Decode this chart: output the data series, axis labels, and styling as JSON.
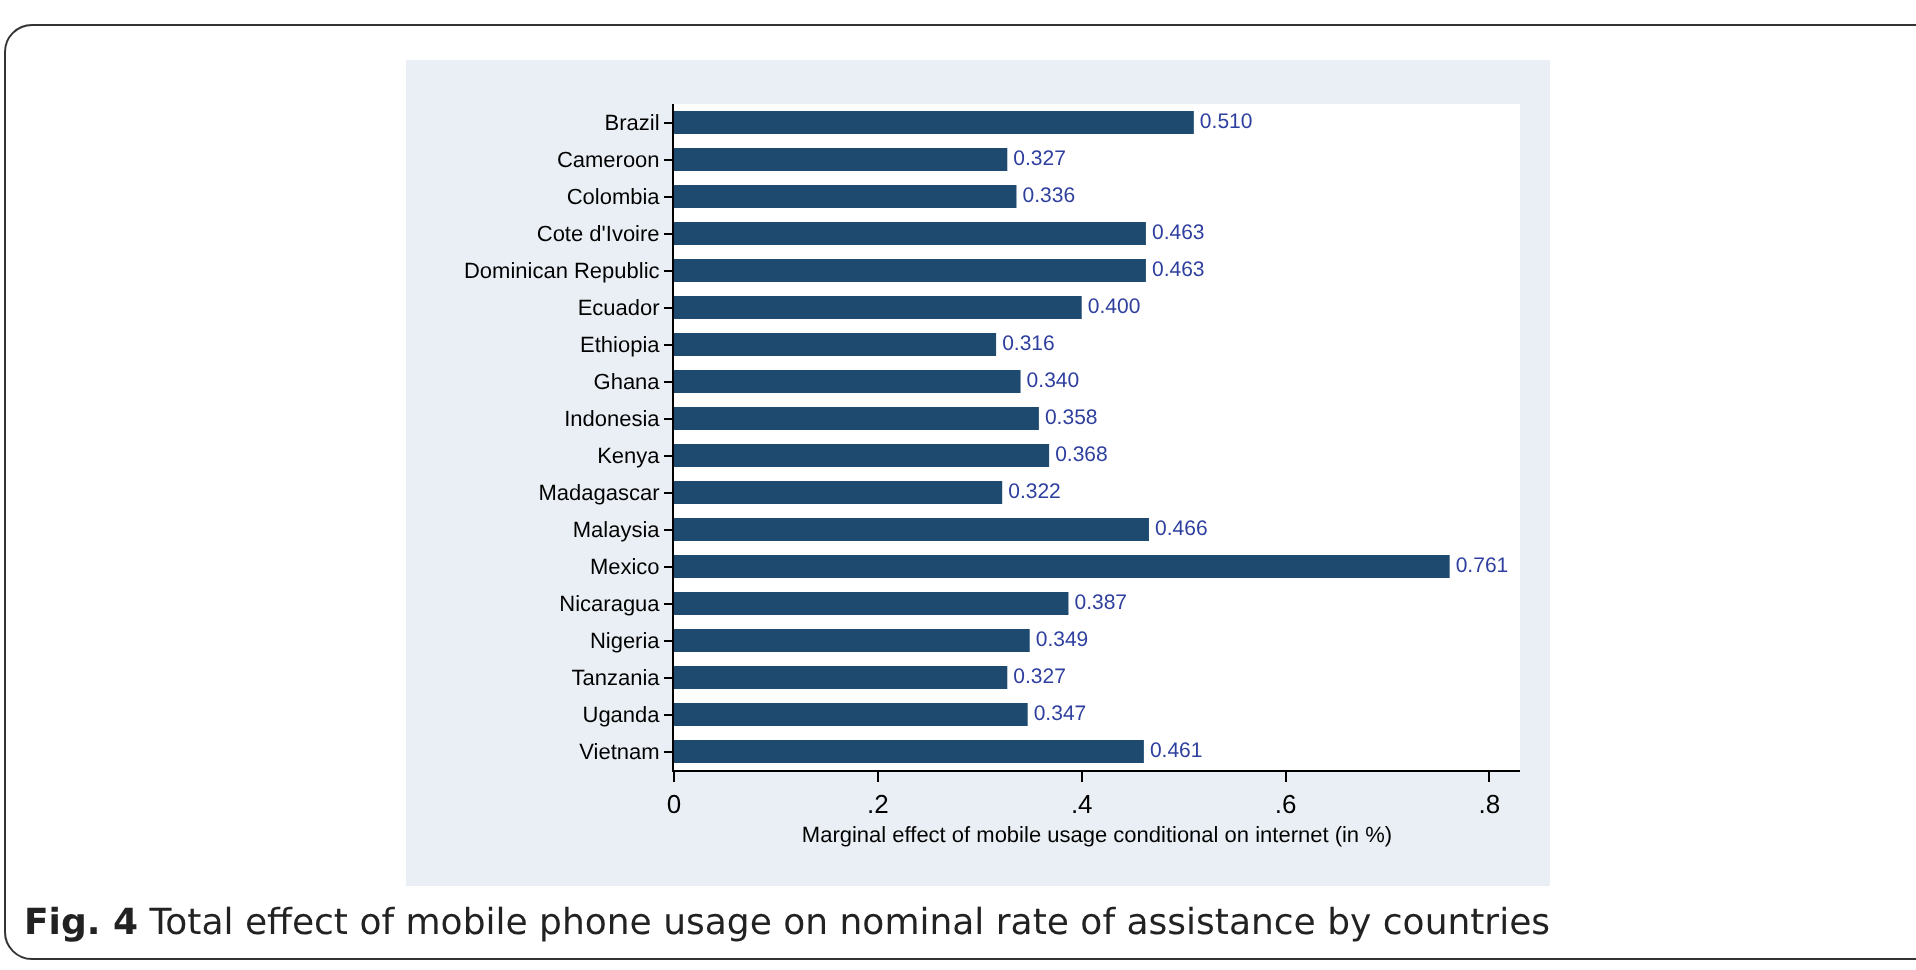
{
  "chart_data": {
    "type": "bar",
    "orientation": "horizontal",
    "xlabel": "Marginal effect of mobile usage conditional on internet (in %)",
    "annotations": [
      "Fig. 4",
      "Total effect of mobile phone usage on nominal rate of assistance by countries"
    ],
    "categories": [
      "Brazil",
      "Cameroon",
      "Colombia",
      "Cote d'Ivoire",
      "Dominican Republic",
      "Ecuador",
      "Ethiopia",
      "Ghana",
      "Indonesia",
      "Kenya",
      "Madagascar",
      "Malaysia",
      "Mexico",
      "Nicaragua",
      "Nigeria",
      "Tanzania",
      "Uganda",
      "Vietnam"
    ],
    "values": [
      0.51,
      0.327,
      0.336,
      0.463,
      0.463,
      0.4,
      0.316,
      0.34,
      0.358,
      0.368,
      0.322,
      0.466,
      0.761,
      0.387,
      0.349,
      0.327,
      0.347,
      0.461
    ],
    "value_labels": [
      "0.510",
      "0.327",
      "0.336",
      "0.463",
      "0.463",
      "0.400",
      "0.316",
      "0.340",
      "0.358",
      "0.368",
      "0.322",
      "0.466",
      "0.761",
      "0.387",
      "0.349",
      "0.327",
      "0.347",
      "0.461"
    ],
    "color": "#1f4a70",
    "xlim": [
      0,
      0.83
    ],
    "xticks": [
      {
        "value": 0,
        "label": "0"
      },
      {
        "value": 0.2,
        "label": ".2"
      },
      {
        "value": 0.4,
        "label": ".4"
      },
      {
        "value": 0.6,
        "label": ".6"
      },
      {
        "value": 0.8,
        "label": ".8"
      }
    ],
    "grid": false
  }
}
